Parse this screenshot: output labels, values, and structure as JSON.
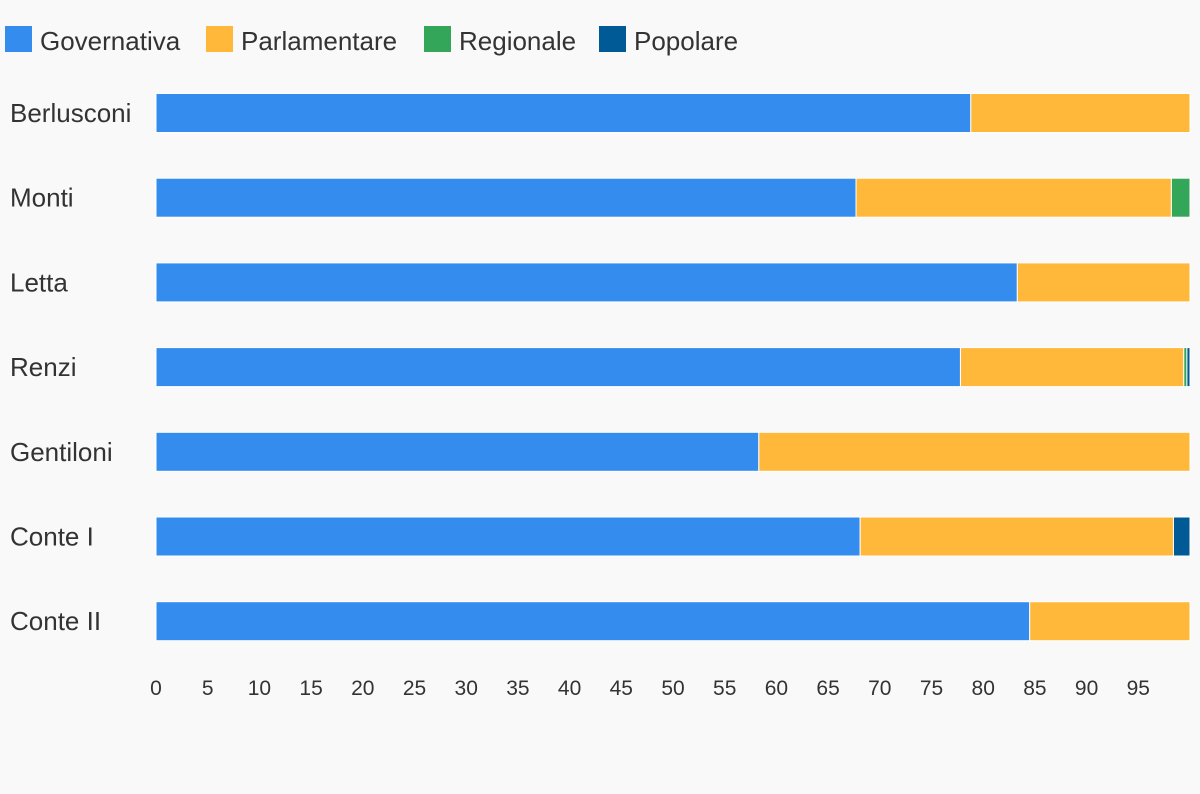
{
  "chart_data": {
    "type": "bar",
    "orientation": "horizontal",
    "stacked": true,
    "categories": [
      "Berlusconi",
      "Monti",
      "Letta",
      "Renzi",
      "Gentiloni",
      "Conte I",
      "Conte II"
    ],
    "series": [
      {
        "name": "Governativa",
        "color": "#348cee",
        "values": [
          78.8,
          67.7,
          83.3,
          77.8,
          58.3,
          68.1,
          84.5
        ]
      },
      {
        "name": "Parlamentare",
        "color": "#ffb83a",
        "values": [
          21.2,
          30.5,
          16.7,
          21.6,
          41.7,
          30.3,
          15.5
        ]
      },
      {
        "name": "Regionale",
        "color": "#33a65a",
        "values": [
          0,
          1.8,
          0,
          0.3,
          0,
          0,
          0
        ]
      },
      {
        "name": "Popolare",
        "color": "#005a96",
        "values": [
          0,
          0,
          0,
          0.3,
          0,
          1.6,
          0
        ]
      }
    ],
    "x_ticks": [
      "0",
      "5",
      "10",
      "15",
      "20",
      "25",
      "30",
      "35",
      "40",
      "45",
      "50",
      "55",
      "60",
      "65",
      "70",
      "75",
      "80",
      "85",
      "90",
      "95"
    ],
    "xlim": [
      0,
      100
    ],
    "grid": false,
    "legend_position": "top-left",
    "title": "",
    "xlabel": "",
    "ylabel": ""
  }
}
